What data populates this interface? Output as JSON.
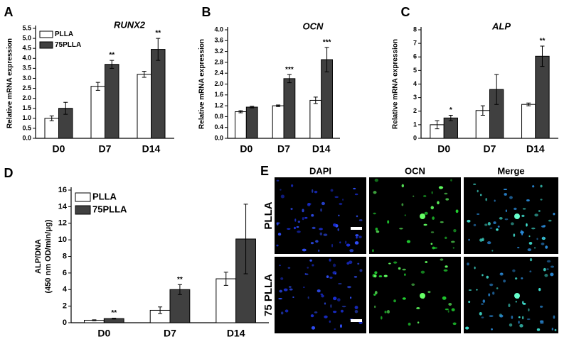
{
  "chart_data": [
    {
      "type": "bar",
      "panel": "A",
      "title": "RUNX2",
      "ylabel": [
        "Relative mRNA expression"
      ],
      "categories": [
        "D0",
        "D7",
        "D14"
      ],
      "series": [
        {
          "name": "PLLA",
          "color": "#ffffff",
          "values": [
            1.0,
            2.6,
            3.2
          ],
          "errors": [
            0.12,
            0.2,
            0.15
          ],
          "significance": [
            null,
            null,
            null
          ]
        },
        {
          "name": "75PLLA",
          "color": "#404040",
          "values": [
            1.5,
            3.7,
            4.45
          ],
          "errors": [
            0.3,
            0.2,
            0.55
          ],
          "significance": [
            null,
            "**",
            "**"
          ]
        }
      ],
      "ylim": [
        0,
        5.5
      ],
      "yticks": [
        {
          "value": 0,
          "label": "0.0"
        },
        0.5,
        {
          "value": 1,
          "label": "1.0"
        },
        1.5,
        {
          "value": 2,
          "label": "2.0"
        },
        2.5,
        {
          "value": 3,
          "label": "3.0"
        },
        3.5,
        {
          "value": 4,
          "label": "4.0"
        },
        4.5,
        {
          "value": 5,
          "label": "5.0"
        },
        5.5
      ],
      "legend": "upper left"
    },
    {
      "type": "bar",
      "panel": "B",
      "title": "OCN",
      "ylabel": [
        "Relative mRNA expression"
      ],
      "categories": [
        "D0",
        "D7",
        "D14"
      ],
      "series": [
        {
          "name": "PLLA",
          "color": "#ffffff",
          "values": [
            0.98,
            1.2,
            1.4
          ],
          "errors": [
            0.04,
            0.03,
            0.12
          ],
          "significance": [
            null,
            null,
            null
          ]
        },
        {
          "name": "75PLLA",
          "color": "#404040",
          "values": [
            1.15,
            2.2,
            2.9
          ],
          "errors": [
            0.03,
            0.15,
            0.45
          ],
          "significance": [
            null,
            "***",
            "***"
          ]
        }
      ],
      "ylim": [
        0,
        4
      ],
      "yticks": [
        {
          "value": 0,
          "label": "0.0"
        },
        0.4,
        0.8,
        1.2,
        1.6,
        {
          "value": 2,
          "label": "2.0"
        },
        2.4,
        2.8,
        3.2,
        3.6,
        {
          "value": 4,
          "label": "4.0"
        }
      ],
      "legend": "none"
    },
    {
      "type": "bar",
      "panel": "C",
      "title": "ALP",
      "ylabel": [
        "Relative mRNA expression"
      ],
      "categories": [
        "D0",
        "D7",
        "D14"
      ],
      "series": [
        {
          "name": "PLLA",
          "color": "#ffffff",
          "values": [
            1.0,
            2.05,
            2.5
          ],
          "errors": [
            0.3,
            0.35,
            0.1
          ],
          "significance": [
            null,
            null,
            null
          ]
        },
        {
          "name": "75PLLA",
          "color": "#404040",
          "values": [
            1.5,
            3.6,
            6.05
          ],
          "errors": [
            0.2,
            1.1,
            0.75
          ],
          "significance": [
            "*",
            null,
            "**"
          ]
        }
      ],
      "ylim": [
        0,
        8
      ],
      "yticks": [
        0,
        1,
        2,
        3,
        4,
        5,
        6,
        7,
        8
      ],
      "legend": "none"
    },
    {
      "type": "bar",
      "panel": "D",
      "ylabel": [
        "ALP/DNA",
        "(450 nm OD/min/μg)"
      ],
      "categories": [
        "D0",
        "D7",
        "D14"
      ],
      "series": [
        {
          "name": "PLLA",
          "color": "#ffffff",
          "values": [
            0.3,
            1.5,
            5.3
          ],
          "errors": [
            0.05,
            0.4,
            0.8
          ],
          "significance": [
            null,
            null,
            null
          ]
        },
        {
          "name": "75PLLA",
          "color": "#404040",
          "values": [
            0.5,
            4.0,
            10.1
          ],
          "errors": [
            0.05,
            0.6,
            4.2
          ],
          "significance": [
            "**",
            "**",
            null
          ]
        }
      ],
      "ylim": [
        0,
        16
      ],
      "yticks": [
        0,
        2,
        4,
        6,
        8,
        10,
        12,
        14,
        16
      ],
      "legend": "upper left"
    }
  ],
  "image_panel": {
    "panel": "E",
    "columns": [
      "DAPI",
      "OCN",
      "Merge"
    ],
    "rows": [
      "PLLA",
      "75 PLLA"
    ]
  }
}
